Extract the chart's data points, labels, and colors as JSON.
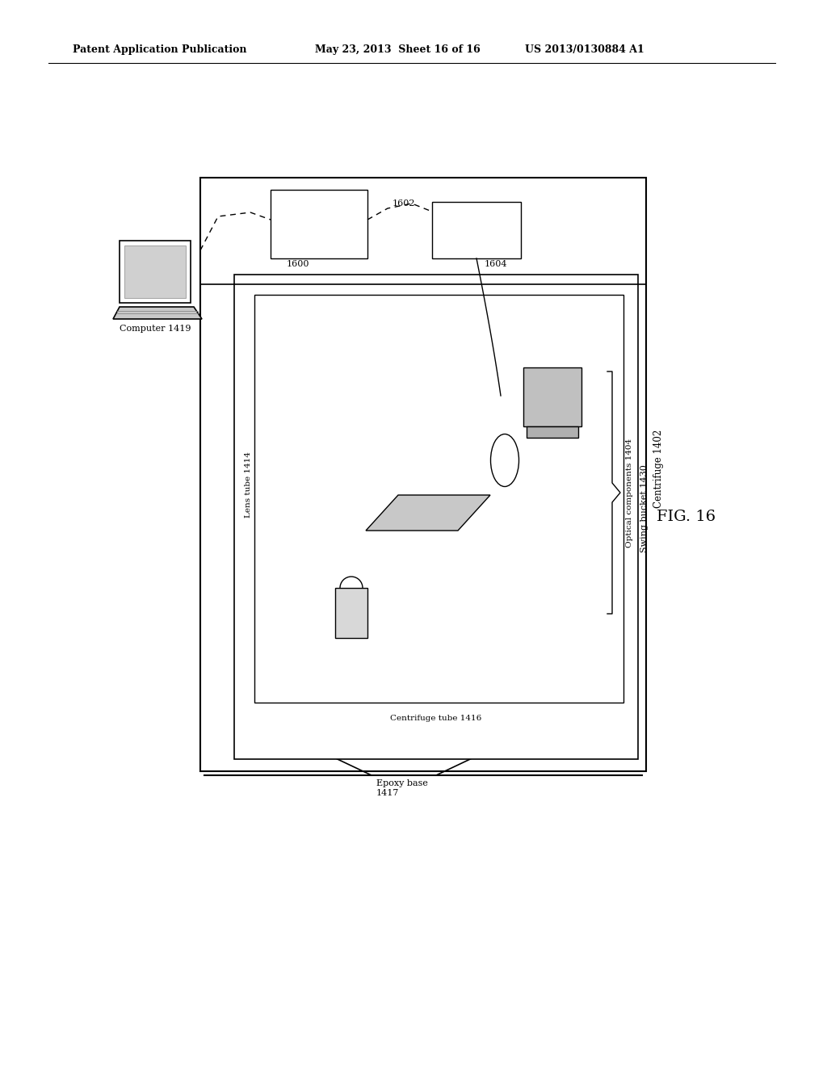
{
  "bg_color": "#ffffff",
  "header_left": "Patent Application Publication",
  "header_mid": "May 23, 2013  Sheet 16 of 16",
  "header_right": "US 2013/0130884 A1",
  "fig_label": "FIG. 16"
}
